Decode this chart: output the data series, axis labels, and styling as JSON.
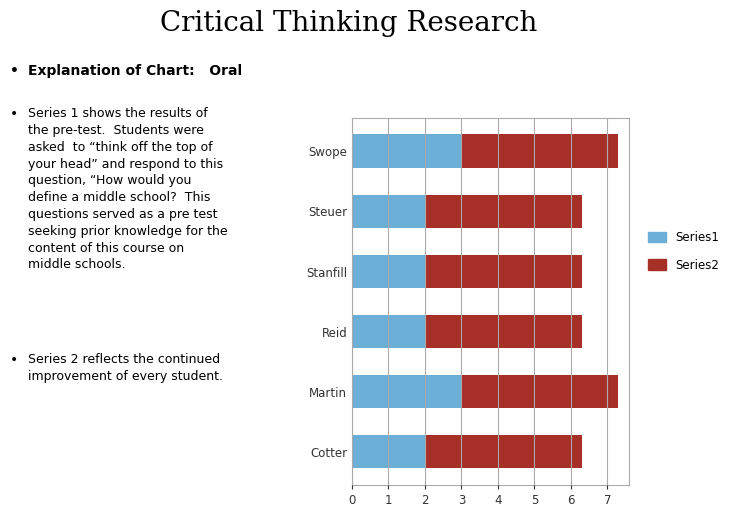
{
  "title": "Critical Thinking Research",
  "bullet1": "Explanation of Chart:   Oral",
  "bullet2_text": "Series 1 shows the results of\nthe pre-test.  Students were\nasked  to “think off the top of\nyour head” and respond to this\nquestion, “How would you\ndefine a middle school?  This\nquestions served as a pre test\nseeking prior knowledge for the\ncontent of this course on\nmiddle schools.",
  "bullet3_text": "Series 2 reflects the continued\nimprovement of every student.",
  "categories": [
    "Swope",
    "Steuer",
    "Stanfill",
    "Reid",
    "Martin",
    "Cotter"
  ],
  "series1_values": [
    3,
    2,
    2,
    2,
    3,
    2
  ],
  "series2_values": [
    7.3,
    6.3,
    6.3,
    6.3,
    7.3,
    6.3
  ],
  "series1_color": "#6baed6",
  "series2_color": "#a63028",
  "xlim": [
    0,
    7.6
  ],
  "xticks": [
    0,
    1,
    2,
    3,
    4,
    5,
    6,
    7
  ],
  "legend_labels": [
    "Series1",
    "Series2"
  ],
  "background_color": "#ffffff",
  "grid_color": "#aaaaaa",
  "title_fontsize": 20,
  "axis_label_color": "#333333"
}
